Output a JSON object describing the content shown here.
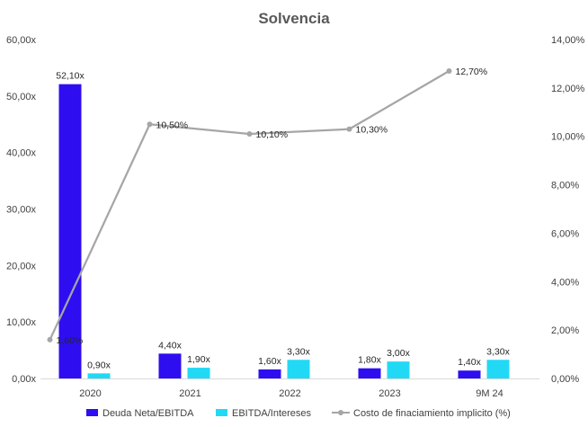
{
  "chart_data": {
    "type": "bar",
    "title": "Solvencia",
    "categories": [
      "2020",
      "2021",
      "2022",
      "2023",
      "9M 24"
    ],
    "series": [
      {
        "name": "Deuda Neta/EBITDA",
        "type": "bar",
        "axis": "left",
        "color": "#2E0EF0",
        "values": [
          52.1,
          4.4,
          1.6,
          1.8,
          1.4
        ],
        "labels": [
          "52,10x",
          "4,40x",
          "1,60x",
          "1,80x",
          "1,40x"
        ]
      },
      {
        "name": "EBITDA/Intereses",
        "type": "bar",
        "axis": "left",
        "color": "#22D9F5",
        "values": [
          0.9,
          1.9,
          3.3,
          3.0,
          3.3
        ],
        "labels": [
          "0,90x",
          "1,90x",
          "3,30x",
          "3,00x",
          "3,30x"
        ]
      },
      {
        "name": "Costo de finaciamiento implicito (%)",
        "type": "line",
        "axis": "right",
        "color": "#A6A6A6",
        "values": [
          1.6,
          10.5,
          10.1,
          10.3,
          12.7
        ],
        "labels": [
          "1,60%",
          "10,50%",
          "10,10%",
          "10,30%",
          "12,70%"
        ]
      }
    ],
    "ylim": [
      0,
      60
    ],
    "y2lim": [
      0,
      14
    ],
    "yticks": [
      "0,00x",
      "10,00x",
      "20,00x",
      "30,00x",
      "40,00x",
      "50,00x",
      "60,00x"
    ],
    "y2ticks": [
      "0,00%",
      "2,00%",
      "4,00%",
      "6,00%",
      "8,00%",
      "10,00%",
      "12,00%",
      "14,00%"
    ],
    "grid": false,
    "legend": "bottom"
  }
}
